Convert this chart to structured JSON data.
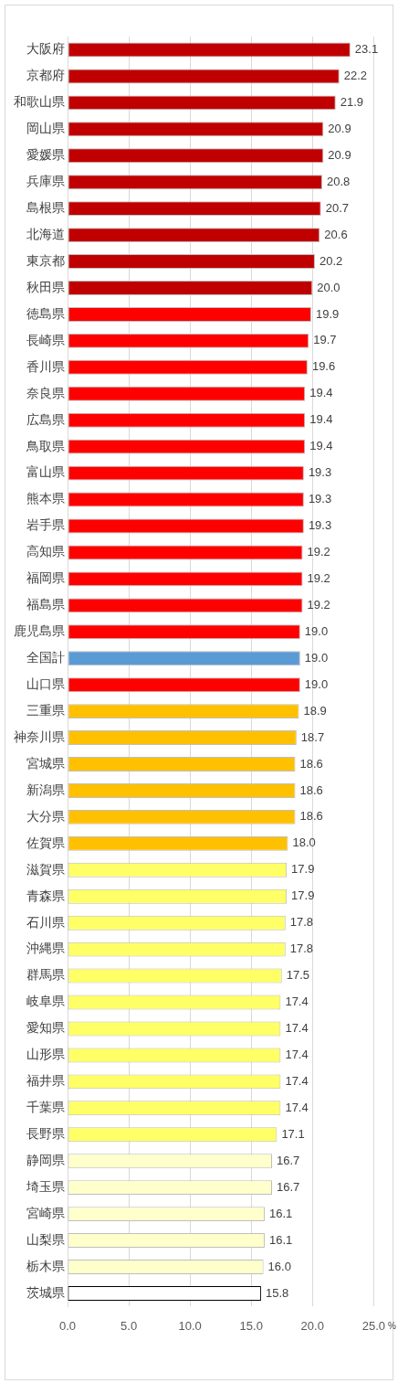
{
  "chart_data": {
    "type": "bar",
    "orientation": "horizontal",
    "xlabel": "%",
    "categories": [
      "大阪府",
      "京都府",
      "和歌山県",
      "岡山県",
      "愛媛県",
      "兵庫県",
      "島根県",
      "北海道",
      "東京都",
      "秋田県",
      "徳島県",
      "長崎県",
      "香川県",
      "奈良県",
      "広島県",
      "鳥取県",
      "富山県",
      "熊本県",
      "岩手県",
      "高知県",
      "福岡県",
      "福島県",
      "鹿児島県",
      "全国計",
      "山口県",
      "三重県",
      "神奈川県",
      "宮城県",
      "新潟県",
      "大分県",
      "佐賀県",
      "滋賀県",
      "青森県",
      "石川県",
      "沖縄県",
      "群馬県",
      "岐阜県",
      "愛知県",
      "山形県",
      "福井県",
      "千葉県",
      "長野県",
      "静岡県",
      "埼玉県",
      "宮崎県",
      "山梨県",
      "栃木県",
      "茨城県"
    ],
    "values": [
      23.1,
      22.2,
      21.9,
      20.9,
      20.9,
      20.8,
      20.7,
      20.6,
      20.2,
      20.0,
      19.9,
      19.7,
      19.6,
      19.4,
      19.4,
      19.4,
      19.3,
      19.3,
      19.3,
      19.2,
      19.2,
      19.2,
      19.0,
      19.0,
      19.0,
      18.9,
      18.7,
      18.6,
      18.6,
      18.6,
      18.0,
      17.9,
      17.9,
      17.8,
      17.8,
      17.5,
      17.4,
      17.4,
      17.4,
      17.4,
      17.4,
      17.1,
      16.7,
      16.7,
      16.1,
      16.1,
      16.0,
      15.8
    ],
    "value_labels": [
      "23.1",
      "22.2",
      "21.9",
      "20.9",
      "20.9",
      "20.8",
      "20.7",
      "20.6",
      "20.2",
      "20.0",
      "19.9",
      "19.7",
      "19.6",
      "19.4",
      "19.4",
      "19.4",
      "19.3",
      "19.3",
      "19.3",
      "19.2",
      "19.2",
      "19.2",
      "19.0",
      "19.0",
      "19.0",
      "18.9",
      "18.7",
      "18.6",
      "18.6",
      "18.6",
      "18.0",
      "17.9",
      "17.9",
      "17.8",
      "17.8",
      "17.5",
      "17.4",
      "17.4",
      "17.4",
      "17.4",
      "17.4",
      "17.1",
      "16.7",
      "16.7",
      "16.1",
      "16.1",
      "16.0",
      "15.8"
    ],
    "colors": [
      "#c00000",
      "#c00000",
      "#c00000",
      "#c00000",
      "#c00000",
      "#c00000",
      "#c00000",
      "#c00000",
      "#c00000",
      "#c00000",
      "#ff0000",
      "#ff0000",
      "#ff0000",
      "#ff0000",
      "#ff0000",
      "#ff0000",
      "#ff0000",
      "#ff0000",
      "#ff0000",
      "#ff0000",
      "#ff0000",
      "#ff0000",
      "#ff0000",
      "#5b9bd5",
      "#ff0000",
      "#ffc000",
      "#ffc000",
      "#ffc000",
      "#ffc000",
      "#ffc000",
      "#ffc000",
      "#ffff66",
      "#ffff66",
      "#ffff66",
      "#ffff66",
      "#ffff66",
      "#ffff66",
      "#ffff66",
      "#ffff66",
      "#ffff66",
      "#ffff66",
      "#ffff66",
      "#ffffcc",
      "#ffffcc",
      "#ffffcc",
      "#ffffcc",
      "#ffffcc",
      "#ffffff"
    ],
    "xlim": [
      0,
      25
    ],
    "xticks": [
      {
        "value": 0,
        "label": "0.0"
      },
      {
        "value": 5,
        "label": "5.0"
      },
      {
        "value": 10,
        "label": "10.0"
      },
      {
        "value": 15,
        "label": "15.0"
      },
      {
        "value": 20,
        "label": "20.0"
      },
      {
        "value": 25,
        "label": "25.0"
      }
    ],
    "grid": "x",
    "legend": false
  }
}
